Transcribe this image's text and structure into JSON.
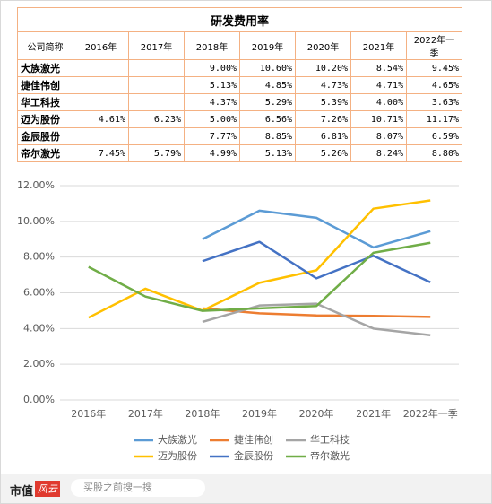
{
  "table": {
    "title": "研发费用率",
    "header": [
      "公司简称",
      "2016年",
      "2017年",
      "2018年",
      "2019年",
      "2020年",
      "2021年",
      "2022年一季"
    ],
    "rows": [
      [
        "大族激光",
        null,
        null,
        "9.00%",
        "10.60%",
        "10.20%",
        "8.54%",
        "9.45%"
      ],
      [
        "捷佳伟创",
        null,
        null,
        "5.13%",
        "4.85%",
        "4.73%",
        "4.71%",
        "4.65%"
      ],
      [
        "华工科技",
        null,
        null,
        "4.37%",
        "5.29%",
        "5.39%",
        "4.00%",
        "3.63%"
      ],
      [
        "迈为股份",
        "4.61%",
        "6.23%",
        "5.00%",
        "6.56%",
        "7.26%",
        "10.71%",
        "11.17%"
      ],
      [
        "金辰股份",
        null,
        null,
        "7.77%",
        "8.85%",
        "6.81%",
        "8.07%",
        "6.59%"
      ],
      [
        "帝尔激光",
        "7.45%",
        "5.79%",
        "4.99%",
        "5.13%",
        "5.26%",
        "8.24%",
        "8.80%"
      ]
    ]
  },
  "chart_data": {
    "type": "line",
    "categories": [
      "2016年",
      "2017年",
      "2018年",
      "2019年",
      "2020年",
      "2021年",
      "2022年一季"
    ],
    "series": [
      {
        "name": "大族激光",
        "color": "#5b9bd5",
        "values": [
          null,
          null,
          9.0,
          10.6,
          10.2,
          8.54,
          9.45
        ]
      },
      {
        "name": "捷佳伟创",
        "color": "#ed7d31",
        "values": [
          null,
          null,
          5.13,
          4.85,
          4.73,
          4.71,
          4.65
        ]
      },
      {
        "name": "华工科技",
        "color": "#a5a5a5",
        "values": [
          null,
          null,
          4.37,
          5.29,
          5.39,
          4.0,
          3.63
        ]
      },
      {
        "name": "迈为股份",
        "color": "#ffc000",
        "values": [
          4.61,
          6.23,
          5.0,
          6.56,
          7.26,
          10.71,
          11.17
        ]
      },
      {
        "name": "金辰股份",
        "color": "#4472c4",
        "values": [
          null,
          null,
          7.77,
          8.85,
          6.81,
          8.07,
          6.59
        ]
      },
      {
        "name": "帝尔激光",
        "color": "#70ad47",
        "values": [
          7.45,
          5.79,
          4.99,
          5.13,
          5.26,
          8.24,
          8.8
        ]
      }
    ],
    "ylim": [
      0,
      12
    ],
    "yticks": [
      {
        "value": 0,
        "label": "0.00%"
      },
      {
        "value": 2,
        "label": "2.00%"
      },
      {
        "value": 4,
        "label": "4.00%"
      },
      {
        "value": 6,
        "label": "6.00%"
      },
      {
        "value": 8,
        "label": "8.00%"
      },
      {
        "value": 10,
        "label": "10.00%"
      },
      {
        "value": 12,
        "label": "12.00%"
      }
    ],
    "grid": true
  },
  "footer": {
    "brand": "市值",
    "brand_tag": "风云",
    "search": "买股之前搜一搜"
  }
}
